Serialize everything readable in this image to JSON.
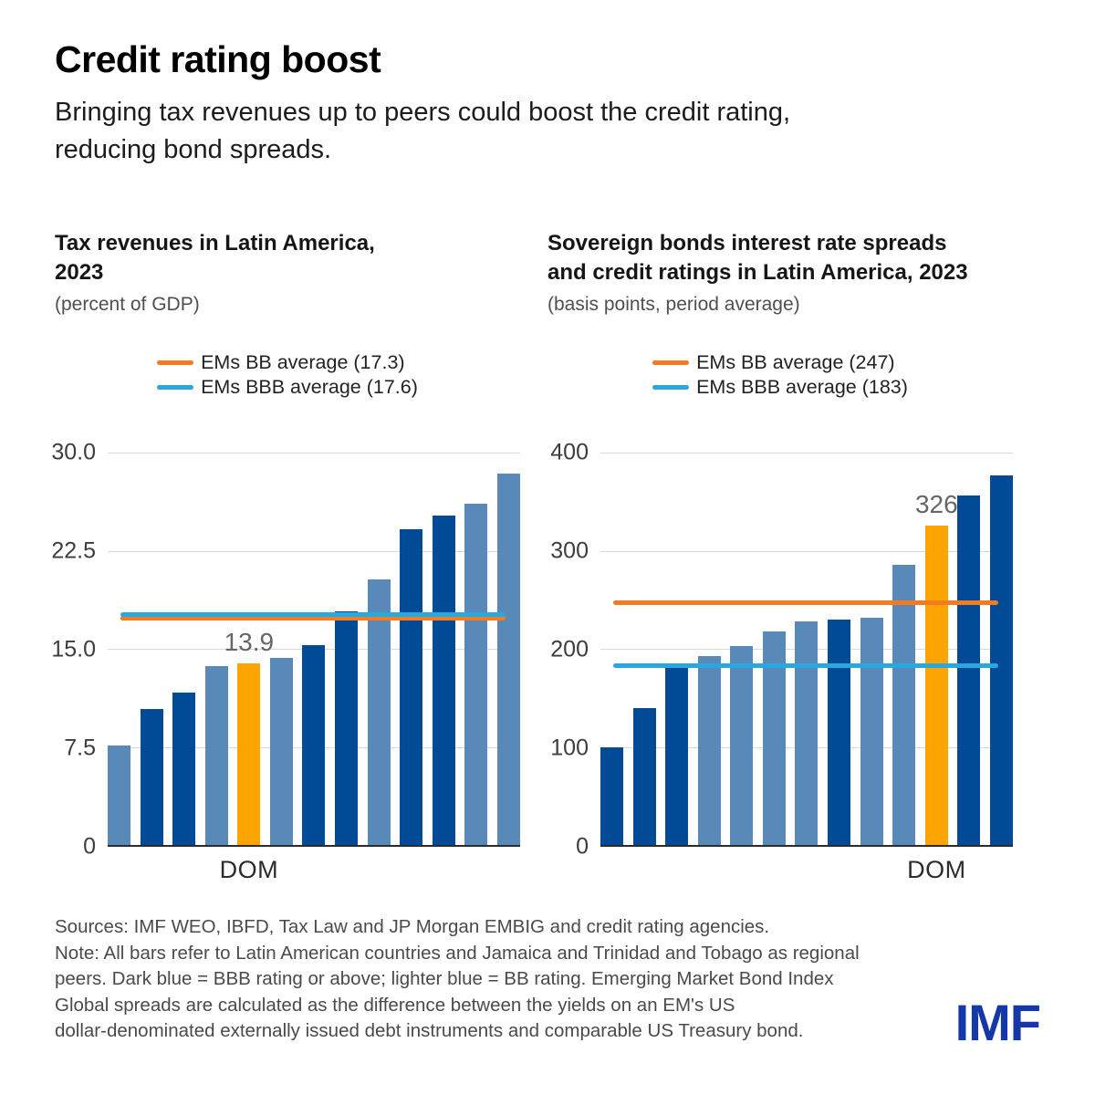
{
  "header": {
    "title": "Credit rating boost",
    "subtitle": "Bringing tax revenues up to peers could boost the credit rating, reducing bond spreads.",
    "subtitle_lines": [
      "Bringing tax revenues up to peers could boost the credit rating,",
      "reducing bond spreads."
    ]
  },
  "colors": {
    "bar_bbb_dark_blue": "#004A96",
    "bar_bb_light_blue": "#5889B8",
    "bar_highlight_orange": "#FCA400",
    "line_bb_orange": "#F47B20",
    "line_bbb_blue": "#29A8E0",
    "imf_logo_blue": "#1438A8"
  },
  "chart_data": [
    {
      "type": "bar",
      "title": "Tax revenues in Latin America, 2023",
      "title_lines": [
        "Tax revenues in Latin America,",
        "2023"
      ],
      "unit": "(percent of GDP)",
      "ylim": [
        0,
        30
      ],
      "grid": true,
      "legend_position": "top-center",
      "yticks": [
        {
          "label": "0",
          "value": 0
        },
        {
          "label": "7.5",
          "value": 7.5
        },
        {
          "label": "15.0",
          "value": 15
        },
        {
          "label": "22.5",
          "value": 22.5
        },
        {
          "label": "30.0",
          "value": 30
        }
      ],
      "legend": [
        {
          "label": "EMs BB average (17.3)",
          "value": 17.3,
          "color_key": "line_bb_orange"
        },
        {
          "label": "EMs BBB average (17.6)",
          "value": 17.6,
          "color_key": "line_bbb_blue"
        }
      ],
      "highlight": {
        "index": 4,
        "label": "13.9",
        "x_label": "DOM"
      },
      "bars": [
        {
          "value": 7.6,
          "rating": "BB"
        },
        {
          "value": 10.4,
          "rating": "BBB"
        },
        {
          "value": 11.7,
          "rating": "BBB"
        },
        {
          "value": 13.7,
          "rating": "BB"
        },
        {
          "value": 13.9,
          "rating": "BB",
          "highlight": true,
          "country": "DOM"
        },
        {
          "value": 14.3,
          "rating": "BB"
        },
        {
          "value": 15.3,
          "rating": "BBB"
        },
        {
          "value": 17.9,
          "rating": "BBB"
        },
        {
          "value": 20.3,
          "rating": "BB"
        },
        {
          "value": 24.2,
          "rating": "BBB"
        },
        {
          "value": 25.2,
          "rating": "BBB"
        },
        {
          "value": 26.1,
          "rating": "BB"
        },
        {
          "value": 28.4,
          "rating": "BB"
        }
      ]
    },
    {
      "type": "bar",
      "title": "Sovereign bonds interest rate spreads and credit ratings in Latin America, 2023",
      "title_lines": [
        "Sovereign bonds interest rate spreads",
        "and credit ratings in Latin America, 2023"
      ],
      "unit": "(basis points, period average)",
      "ylim": [
        0,
        400
      ],
      "grid": true,
      "legend_position": "top-center",
      "yticks": [
        {
          "label": "0",
          "value": 0
        },
        {
          "label": "100",
          "value": 100
        },
        {
          "label": "200",
          "value": 200
        },
        {
          "label": "300",
          "value": 300
        },
        {
          "label": "400",
          "value": 400
        }
      ],
      "legend": [
        {
          "label": "EMs BB average (247)",
          "value": 247,
          "color_key": "line_bb_orange"
        },
        {
          "label": "EMs BBB average (183)",
          "value": 183,
          "color_key": "line_bbb_blue"
        }
      ],
      "highlight": {
        "index": 10,
        "label": "326",
        "x_label": "DOM"
      },
      "bars": [
        {
          "value": 100,
          "rating": "BBB"
        },
        {
          "value": 140,
          "rating": "BBB"
        },
        {
          "value": 181,
          "rating": "BBB"
        },
        {
          "value": 193,
          "rating": "BB"
        },
        {
          "value": 203,
          "rating": "BB"
        },
        {
          "value": 218,
          "rating": "BB"
        },
        {
          "value": 228,
          "rating": "BB"
        },
        {
          "value": 230,
          "rating": "BBB"
        },
        {
          "value": 232,
          "rating": "BB"
        },
        {
          "value": 286,
          "rating": "BB"
        },
        {
          "value": 326,
          "rating": "BB",
          "highlight": true,
          "country": "DOM"
        },
        {
          "value": 357,
          "rating": "BBB"
        },
        {
          "value": 377,
          "rating": "BBB"
        }
      ]
    }
  ],
  "footer": {
    "sources": "Sources: IMF WEO, IBFD, Tax Law and JP Morgan EMBIG and credit rating agencies.",
    "note_lines": [
      "Note: All bars refer to Latin American countries and Jamaica and Trinidad and Tobago as regional",
      "peers. Dark blue = BBB rating or above; lighter blue = BB rating. Emerging Market Bond Index",
      "Global spreads are calculated as the difference between the yields on an EM's US",
      "dollar-denominated externally issued debt instruments and comparable US Treasury bond."
    ],
    "logo": "IMF"
  }
}
